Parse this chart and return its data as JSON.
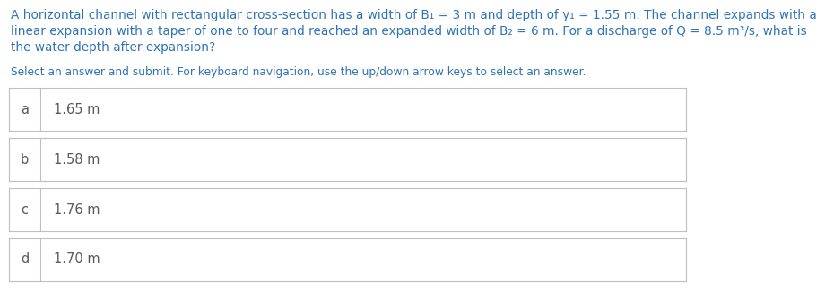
{
  "question_line1": "A horizontal channel with rectangular cross-section has a width of B₁ = 3 m and depth of y₁ = 1.55 m. The channel expands with a",
  "question_line2": "linear expansion with a taper of one to four and reached an expanded width of B₂ = 6 m. For a discharge of Q = 8.5 m³/s, what is",
  "question_line3": "the water depth after expansion?",
  "instruction_text": "Select an answer and submit. For keyboard navigation, use the up/down arrow keys to select an answer.",
  "options": [
    {
      "label": "a",
      "answer": "1.65 m"
    },
    {
      "label": "b",
      "answer": "1.58 m"
    },
    {
      "label": "c",
      "answer": "1.76 m"
    },
    {
      "label": "d",
      "answer": "1.70 m"
    }
  ],
  "question_color": "#2e74b5",
  "instruction_color": "#2e74b5",
  "option_label_color": "#595959",
  "option_answer_color": "#595959",
  "box_border_color": "#bfbfbf",
  "background_color": "#ffffff",
  "option_bg_color": "#ffffff",
  "font_size_question": 9.8,
  "font_size_instruction": 8.8,
  "font_size_option": 10.5
}
